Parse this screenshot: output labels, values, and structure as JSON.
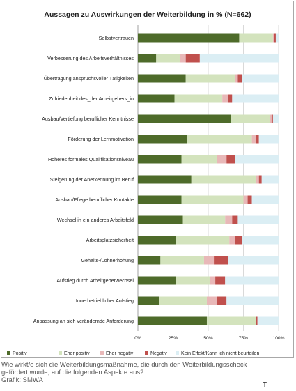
{
  "chart_data": {
    "type": "bar",
    "stacked": "100%",
    "orientation": "horizontal",
    "title": "Aussagen zu Auswirkungen der Weiterbildung in % (N=662)",
    "categories": [
      "Selbstvertrauen",
      "Verbesserung des Arbeitsverhältnisses",
      "Übertragung anspruchsvoller Tätigkeiten",
      "Zufriedenheit des_der Arbeitgebers_in",
      "Ausbau/Vertiefung beruflicher Kenntnisse",
      "Förderung der Lernmotivation",
      "Höheres formales Qualifikationsniveau",
      "Steigerung der Anerkennung im Beruf",
      "Ausbau/Pflege beruflicher Kontakte",
      "Wechsel in ein anderes Arbeitsfeld",
      "Arbeitsplatzsicherheit",
      "Gehalts-/Lohnerhöhung",
      "Aufstieg durch Arbeitgeberwechsel",
      "Innerbetrieblicher Aufstieg",
      "Anpassung an sich verändernde Anforderung"
    ],
    "series": [
      {
        "name": "Positiv",
        "color": "#4e6b2a",
        "values": [
          72,
          13,
          34,
          26,
          66,
          35,
          31,
          38,
          31,
          32,
          27,
          16,
          27,
          15,
          49
        ]
      },
      {
        "name": "Eher positiv",
        "color": "#d3e3bd",
        "values": [
          24,
          17,
          35,
          34,
          28,
          46,
          25,
          46,
          44,
          30,
          38,
          31,
          24,
          34,
          35
        ]
      },
      {
        "name": "Eher negativ",
        "color": "#e8b8b8",
        "values": [
          1,
          4,
          2,
          4,
          1,
          3,
          7,
          2,
          3,
          5,
          4,
          7,
          4,
          7,
          0
        ]
      },
      {
        "name": "Negativ",
        "color": "#c0504d",
        "values": [
          1,
          10,
          3,
          3,
          1,
          2,
          6,
          2,
          3,
          4,
          5,
          10,
          7,
          7,
          1
        ]
      },
      {
        "name": "Kein Effekt/Kann ich nicht beurteilen",
        "color": "#dbeef4",
        "values": [
          2,
          56,
          26,
          33,
          4,
          14,
          31,
          12,
          19,
          29,
          26,
          36,
          38,
          37,
          15
        ]
      }
    ],
    "xlim": [
      0,
      100
    ],
    "xticks": [
      "0%",
      "25%",
      "50%",
      "75%",
      "100%"
    ],
    "grid": true,
    "legend": "bottom"
  },
  "caption": {
    "line1": "Wie wirkt/e sich die Weiterbildungsmaßnahme, die durch den Weiterbildungsscheck",
    "line2": "gefördert wurde, auf die folgenden Aspekte aus?",
    "line3": "Grafik: SMWA"
  },
  "cursor_glyph": "T"
}
